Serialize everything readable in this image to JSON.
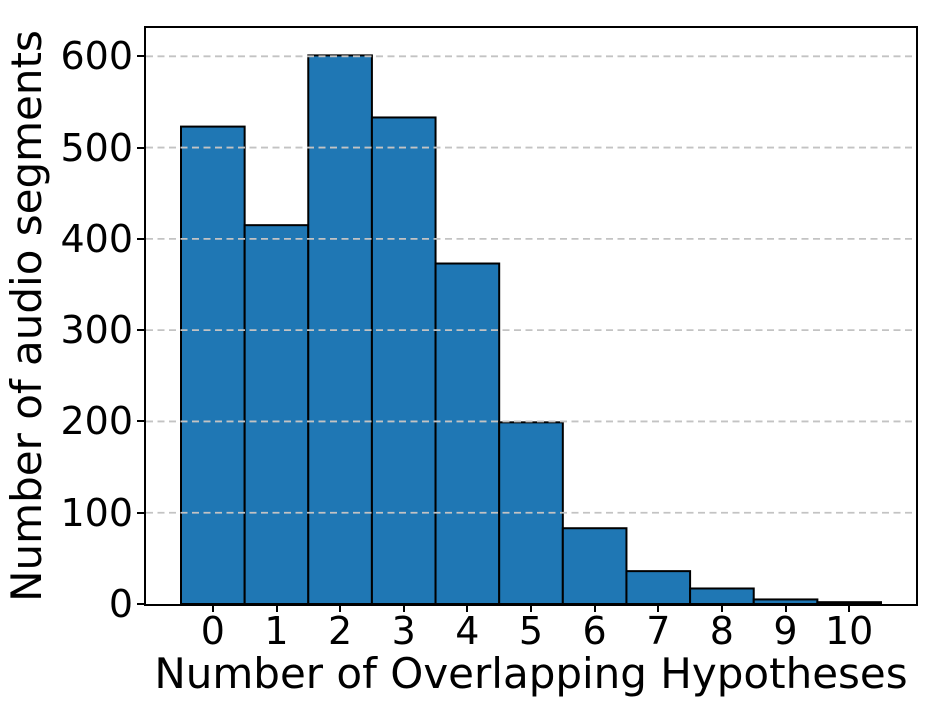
{
  "chart_data": {
    "type": "bar",
    "title": "",
    "xlabel": "Number of Overlapping Hypotheses",
    "ylabel": "Number of audio segments",
    "categories": [
      "0",
      "1",
      "2",
      "3",
      "4",
      "5",
      "6",
      "7",
      "8",
      "9",
      "10"
    ],
    "values": [
      523,
      415,
      601,
      533,
      373,
      199,
      83,
      36,
      17,
      5,
      2
    ],
    "yticks": [
      0,
      100,
      200,
      300,
      400,
      500,
      600
    ],
    "ylim": [
      0,
      631
    ],
    "xlim": [
      -1.05,
      11.05
    ],
    "bar_width": 1.0,
    "grid": {
      "axis": "y",
      "style": "dashed",
      "color": "#c3c3c3"
    },
    "legend": "none",
    "colors": {
      "bar_fill": "#1f77b4",
      "bar_edge": "#000000",
      "spine": "#000000",
      "text": "#000000",
      "background": "#ffffff"
    }
  }
}
